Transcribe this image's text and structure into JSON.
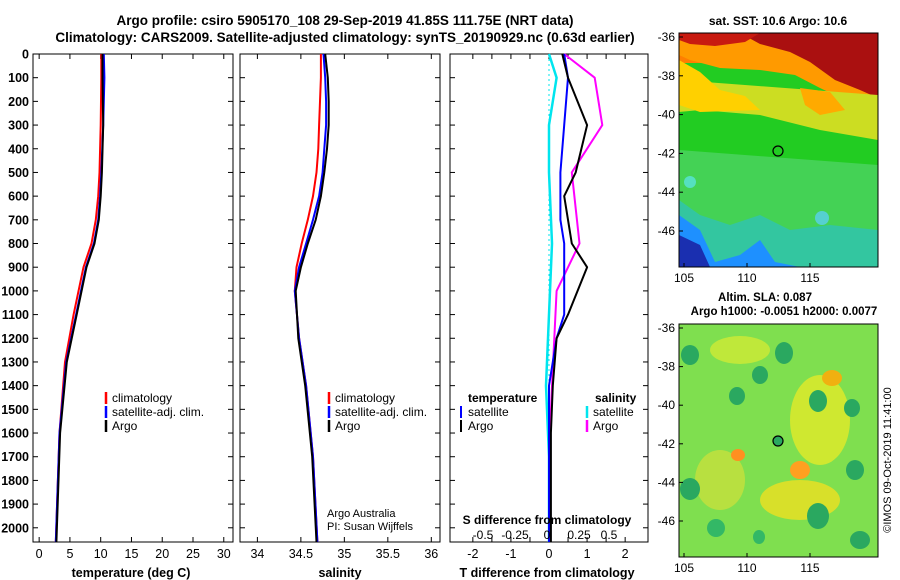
{
  "header": {
    "title_line1": "Argo profile: csiro 5905170_108 29-Sep-2019 41.85S 111.75E (NRT data)",
    "title_line2": "Climatology: CARS2009. Satellite-adjusted climatology: synTS_20190929.nc (0.63d earlier)"
  },
  "colors": {
    "climatology": "#ff0000",
    "satellite": "#0000ff",
    "argo": "#000000",
    "s_satellite": "#00e5ee",
    "s_argo": "#ff00ff"
  },
  "depth_ticks": [
    "0",
    "100",
    "200",
    "300",
    "400",
    "500",
    "600",
    "700",
    "800",
    "900",
    "1000",
    "1100",
    "1200",
    "1300",
    "1400",
    "1500",
    "1600",
    "1700",
    "1800",
    "1900",
    "2000"
  ],
  "panels": {
    "temperature": {
      "xlabel": "temperature (deg C)",
      "xticks": [
        "0",
        "5",
        "10",
        "15",
        "20",
        "25",
        "30"
      ],
      "legend": [
        "climatology",
        "satellite-adj. clim.",
        "Argo"
      ]
    },
    "salinity": {
      "xlabel": "salinity",
      "xticks": [
        "34",
        "34.5",
        "35",
        "35.5",
        "36"
      ],
      "legend": [
        "climatology",
        "satellite-adj. clim.",
        "Argo"
      ],
      "credit1": "Argo Australia",
      "credit2": "PI: Susan Wijffels"
    },
    "difference": {
      "xlabel": "T difference from climatology",
      "xticks": [
        "-2",
        "-1.5",
        "-1",
        "-0.5",
        "0",
        "0.5",
        "1",
        "1.5",
        "2"
      ],
      "stitle": "S difference from climatology",
      "sticks": [
        "-0.5",
        "-0.25",
        "0",
        "0.25",
        "0.5"
      ],
      "legend_temp_head": "temperature",
      "legend_sal_head": "salinity",
      "legend_rows": [
        "satellite",
        "Argo"
      ]
    }
  },
  "maps": {
    "sst": {
      "title": "sat. SST: 10.6 Argo: 10.6",
      "xticks": [
        "105",
        "110",
        "115"
      ],
      "yticks": [
        "-36",
        "-38",
        "-40",
        "-42",
        "-44",
        "-46"
      ]
    },
    "sla": {
      "title1": "Altim. SLA: 0.087",
      "title2": "Argo h1000: -0.0051 h2000: 0.0077",
      "xticks": [
        "105",
        "110",
        "115"
      ],
      "yticks": [
        "-36",
        "-38",
        "-40",
        "-42",
        "-44",
        "-46"
      ]
    },
    "stamp": "©IMOS 09-Oct-2019 11:41:00"
  },
  "chart_data": [
    {
      "type": "line",
      "title": "temperature",
      "xlabel": "temperature (deg C)",
      "ylabel": "depth",
      "xlim": [
        -1,
        31.5
      ],
      "ylim": [
        2060,
        0
      ],
      "series": [
        {
          "name": "climatology",
          "x": [
            10.1,
            10.1,
            10.0,
            9.8,
            9.6,
            9.2,
            8.5,
            7.2,
            5.6,
            4.2,
            3.3,
            2.7
          ],
          "y": [
            0,
            100,
            300,
            500,
            600,
            700,
            800,
            900,
            1100,
            1300,
            1600,
            2060
          ]
        },
        {
          "name": "satellite-adj. clim.",
          "x": [
            10.5,
            10.6,
            10.4,
            10.1,
            9.9,
            9.6,
            8.9,
            7.6,
            6.0,
            4.4,
            3.3,
            2.7
          ],
          "y": [
            0,
            100,
            300,
            500,
            600,
            700,
            800,
            900,
            1100,
            1300,
            1600,
            2060
          ]
        },
        {
          "name": "Argo",
          "x": [
            10.3,
            10.3,
            10.4,
            10.2,
            10.0,
            9.7,
            9.0,
            7.7,
            6.1,
            4.5,
            3.4,
            2.8
          ],
          "y": [
            0,
            100,
            300,
            500,
            600,
            700,
            800,
            900,
            1100,
            1300,
            1600,
            2060
          ]
        }
      ]
    },
    {
      "type": "line",
      "title": "salinity",
      "xlabel": "salinity",
      "ylabel": "depth",
      "xlim": [
        33.8,
        36.1
      ],
      "ylim": [
        2060,
        0
      ],
      "series": [
        {
          "name": "climatology",
          "x": [
            34.73,
            34.73,
            34.72,
            34.71,
            34.7,
            34.68,
            34.64,
            34.58,
            34.51,
            34.45,
            34.43,
            34.48,
            34.56,
            34.64,
            34.69
          ],
          "y": [
            0,
            100,
            200,
            300,
            400,
            500,
            600,
            700,
            800,
            900,
            1000,
            1200,
            1400,
            1700,
            2060
          ]
        },
        {
          "name": "satellite-adj. clim.",
          "x": [
            34.76,
            34.78,
            34.79,
            34.79,
            34.77,
            34.75,
            34.71,
            34.64,
            34.56,
            34.48,
            34.43,
            34.48,
            34.56,
            34.64,
            34.69
          ],
          "y": [
            0,
            100,
            200,
            300,
            400,
            500,
            600,
            700,
            800,
            900,
            1000,
            1200,
            1400,
            1700,
            2060
          ]
        },
        {
          "name": "Argo",
          "x": [
            34.78,
            34.81,
            34.82,
            34.82,
            34.8,
            34.77,
            34.73,
            34.67,
            34.58,
            34.5,
            34.44,
            34.47,
            34.55,
            34.63,
            34.68
          ],
          "y": [
            0,
            100,
            200,
            300,
            400,
            500,
            600,
            700,
            800,
            900,
            1000,
            1200,
            1400,
            1700,
            2060
          ]
        }
      ]
    },
    {
      "type": "line",
      "title": "difference from climatology",
      "xlabel": "T difference from climatology",
      "xlim": [
        -2.6,
        2.6
      ],
      "ylim": [
        2060,
        0
      ],
      "series": [
        {
          "name": "temperature satellite",
          "x": [
            0.4,
            0.5,
            0.4,
            0.3,
            0.3,
            0.3,
            0.4,
            0.4,
            0.4,
            0.2,
            0.0,
            0.0,
            0.0
          ],
          "y": [
            0,
            100,
            300,
            500,
            600,
            700,
            800,
            900,
            1100,
            1200,
            1400,
            1600,
            2060
          ]
        },
        {
          "name": "temperature Argo",
          "x": [
            0.35,
            0.5,
            1.0,
            0.7,
            0.4,
            0.5,
            0.6,
            1.0,
            0.5,
            0.2,
            0.1,
            0.05,
            0.05
          ],
          "y": [
            0,
            100,
            300,
            500,
            600,
            700,
            800,
            900,
            1100,
            1200,
            1400,
            1600,
            2060
          ]
        },
        {
          "name": "salinity satellite",
          "x": [
            0.0,
            0.05,
            0.0,
            0.0,
            0.02,
            0.0,
            -0.02,
            0.0,
            0.0
          ],
          "y": [
            0,
            100,
            300,
            500,
            800,
            1100,
            1400,
            1700,
            2060
          ]
        },
        {
          "name": "salinity Argo",
          "x": [
            0.1,
            0.3,
            0.35,
            0.15,
            0.2,
            0.05,
            0.02,
            0.0,
            0.0
          ],
          "y": [
            0,
            100,
            300,
            500,
            800,
            1000,
            1400,
            1700,
            2060
          ]
        }
      ]
    }
  ]
}
